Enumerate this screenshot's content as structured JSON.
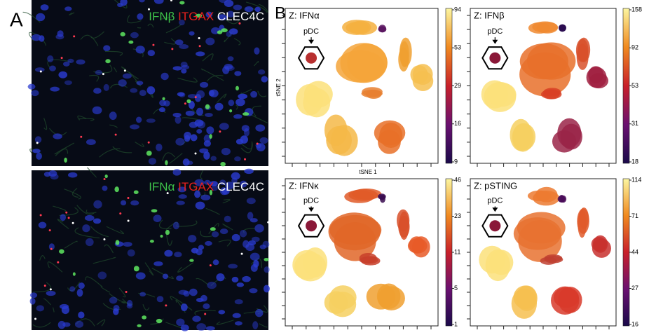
{
  "panel_a": {
    "label": "A",
    "images": [
      {
        "markers": [
          "IFNβ",
          "ITGAX",
          "CLEC4C"
        ]
      },
      {
        "markers": [
          "IFNα",
          "ITGAX",
          "CLEC4C"
        ]
      }
    ]
  },
  "panel_b": {
    "label": "B",
    "x_label": "tSNE 1",
    "y_label": "tSNE 2",
    "plots": [
      {
        "title": "Z: IFNα",
        "annotation": "pDC",
        "colorbar_ticks": [
          94,
          53,
          29,
          16,
          9
        ]
      },
      {
        "title": "Z: IFNβ",
        "annotation": "pDC",
        "colorbar_ticks": [
          158,
          92,
          53,
          31,
          18
        ]
      },
      {
        "title": "Z: IFNκ",
        "annotation": "pDC",
        "colorbar_ticks": [
          46,
          23,
          11,
          5,
          1
        ]
      },
      {
        "title": "Z: pSTING",
        "annotation": "pDC",
        "colorbar_ticks": [
          114,
          71,
          44,
          27,
          16
        ]
      }
    ]
  }
}
